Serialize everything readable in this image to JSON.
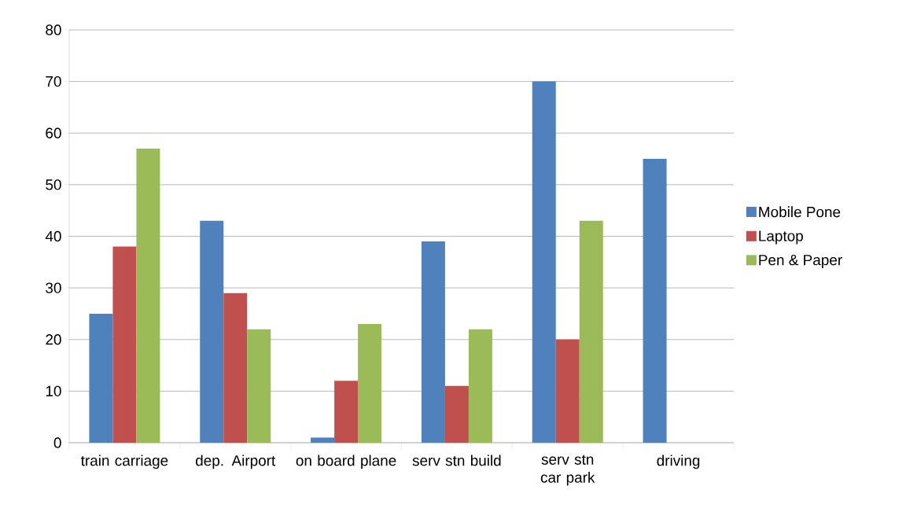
{
  "chart_data": {
    "type": "bar",
    "categories": [
      "train carriage",
      "dep. Airport",
      "on board plane",
      "serv stn build",
      "serv stn car park",
      "driving"
    ],
    "series": [
      {
        "name": "Mobile Pone",
        "color": "#4f81bd",
        "values": [
          25,
          43,
          1,
          39,
          70,
          55
        ]
      },
      {
        "name": "Laptop",
        "color": "#c0504d",
        "values": [
          38,
          29,
          12,
          11,
          20,
          null
        ]
      },
      {
        "name": "Pen & Paper",
        "color": "#9bbb59",
        "values": [
          57,
          22,
          23,
          22,
          43,
          null
        ]
      }
    ],
    "ylim": [
      0,
      80
    ],
    "yticks": [
      0,
      10,
      20,
      30,
      40,
      50,
      60,
      70,
      80
    ],
    "grid": "y",
    "legend": "right"
  }
}
